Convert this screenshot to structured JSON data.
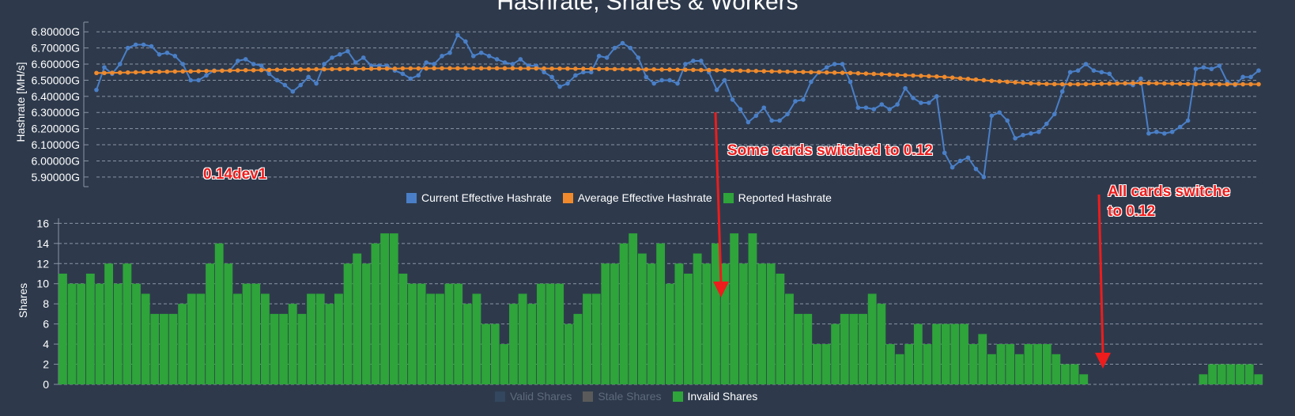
{
  "title": "Hashrate, Shares & Workers",
  "colors": {
    "background": "#2e3a4c",
    "current": "#4a7fc7",
    "average": "#f08a2c",
    "reported": "#2ea43a",
    "bars": "#2ea43a",
    "valid": "#33475e",
    "stale": "#5a5a5a",
    "grid": "#8a94a4",
    "annotation": "#ee1c1c"
  },
  "annotations": {
    "a1": "0.14dev1",
    "a2": "Some cards switched to 0.12",
    "a3_line1": "All cards switche",
    "a3_line2": "to 0.12"
  },
  "chart_data": [
    {
      "type": "line",
      "ylabel": "Hashrate [MH/s]",
      "ylim": [
        5.86,
        6.86
      ],
      "yticks": [
        "5.90000G",
        "6.00000G",
        "6.10000G",
        "6.20000G",
        "6.30000G",
        "6.40000G",
        "6.50000G",
        "6.60000G",
        "6.70000G",
        "6.80000G"
      ],
      "grid": true,
      "legend_position": "bottom",
      "legend": [
        "Current Effective Hashrate",
        "Average Effective Hashrate",
        "Reported Hashrate"
      ],
      "series": [
        {
          "name": "Current Effective Hashrate",
          "values": [
            6.44,
            6.58,
            6.54,
            6.6,
            6.7,
            6.72,
            6.72,
            6.71,
            6.66,
            6.67,
            6.65,
            6.6,
            6.5,
            6.5,
            6.53,
            6.56,
            6.56,
            6.56,
            6.62,
            6.63,
            6.6,
            6.59,
            6.54,
            6.5,
            6.47,
            6.43,
            6.47,
            6.52,
            6.48,
            6.6,
            6.64,
            6.66,
            6.68,
            6.61,
            6.64,
            6.59,
            6.59,
            6.59,
            6.56,
            6.54,
            6.51,
            6.53,
            6.61,
            6.6,
            6.65,
            6.67,
            6.78,
            6.74,
            6.65,
            6.67,
            6.65,
            6.63,
            6.61,
            6.6,
            6.63,
            6.59,
            6.59,
            6.55,
            6.52,
            6.46,
            6.48,
            6.53,
            6.55,
            6.55,
            6.65,
            6.64,
            6.7,
            6.73,
            6.7,
            6.64,
            6.52,
            6.48,
            6.5,
            6.5,
            6.48,
            6.6,
            6.62,
            6.62,
            6.55,
            6.44,
            6.5,
            6.38,
            6.32,
            6.24,
            6.28,
            6.33,
            6.25,
            6.25,
            6.29,
            6.37,
            6.38,
            6.49,
            6.55,
            6.58,
            6.6,
            6.6,
            6.49,
            6.33,
            6.33,
            6.32,
            6.35,
            6.32,
            6.35,
            6.45,
            6.39,
            6.36,
            6.36,
            6.4,
            6.05,
            5.96,
            6.0,
            6.02,
            5.95,
            5.9,
            6.28,
            6.3,
            6.25,
            6.14,
            6.16,
            6.17,
            6.18,
            6.23,
            6.29,
            6.43,
            6.55,
            6.56,
            6.6,
            6.56,
            6.55,
            6.54,
            6.48,
            6.48,
            6.47,
            6.51,
            6.17,
            6.18,
            6.17,
            6.18,
            6.21,
            6.25,
            6.57,
            6.58,
            6.57,
            6.59,
            6.49,
            6.47,
            6.52,
            6.52,
            6.56
          ]
        },
        {
          "name": "Average Effective Hashrate",
          "values": [
            6.545,
            6.545,
            6.546,
            6.547,
            6.548,
            6.549,
            6.55,
            6.551,
            6.552,
            6.553,
            6.554,
            6.555,
            6.555,
            6.556,
            6.557,
            6.558,
            6.559,
            6.56,
            6.561,
            6.562,
            6.562,
            6.563,
            6.564,
            6.565,
            6.565,
            6.566,
            6.567,
            6.567,
            6.568,
            6.568,
            6.569,
            6.569,
            6.57,
            6.57,
            6.571,
            6.571,
            6.572,
            6.572,
            6.572,
            6.573,
            6.573,
            6.573,
            6.573,
            6.574,
            6.574,
            6.574,
            6.574,
            6.574,
            6.574,
            6.574,
            6.574,
            6.574,
            6.574,
            6.574,
            6.573,
            6.573,
            6.573,
            6.573,
            6.572,
            6.572,
            6.572,
            6.571,
            6.571,
            6.571,
            6.57,
            6.57,
            6.569,
            6.569,
            6.568,
            6.568,
            6.567,
            6.567,
            6.566,
            6.566,
            6.565,
            6.565,
            6.564,
            6.563,
            6.563,
            6.562,
            6.561,
            6.56,
            6.559,
            6.558,
            6.557,
            6.556,
            6.555,
            6.554,
            6.553,
            6.552,
            6.551,
            6.55,
            6.549,
            6.548,
            6.547,
            6.546,
            6.545,
            6.543,
            6.541,
            6.539,
            6.537,
            6.535,
            6.533,
            6.531,
            6.529,
            6.527,
            6.525,
            6.523,
            6.52,
            6.516,
            6.512,
            6.508,
            6.504,
            6.5,
            6.496,
            6.493,
            6.49,
            6.487,
            6.484,
            6.481,
            6.479,
            6.477,
            6.476,
            6.475,
            6.475,
            6.475,
            6.476,
            6.477,
            6.478,
            6.479,
            6.48,
            6.481,
            6.482,
            6.482,
            6.482,
            6.481,
            6.48,
            6.479,
            6.478,
            6.477,
            6.476,
            6.476,
            6.475,
            6.475,
            6.475,
            6.475,
            6.475,
            6.475,
            6.475
          ]
        }
      ]
    },
    {
      "type": "bar",
      "ylabel": "Shares",
      "ylim": [
        0,
        16.5
      ],
      "yticks": [
        "0",
        "2",
        "4",
        "6",
        "8",
        "10",
        "12",
        "14",
        "16"
      ],
      "grid": true,
      "legend_position": "bottom",
      "legend": [
        "Valid Shares",
        "Stale Shares",
        "Invalid Shares"
      ],
      "series": [
        {
          "name": "Invalid Shares",
          "values": [
            11,
            10,
            10,
            11,
            10,
            12,
            10,
            12,
            10,
            9,
            7,
            7,
            7,
            8,
            9,
            9,
            12,
            14,
            12,
            9,
            10,
            10,
            9,
            7,
            7,
            8,
            7,
            9,
            9,
            8,
            9,
            12,
            13,
            12,
            14,
            15,
            15,
            11,
            10,
            10,
            9,
            9,
            10,
            10,
            8,
            9,
            6,
            6,
            4,
            8,
            9,
            8,
            10,
            10,
            10,
            6,
            7,
            9,
            9,
            12,
            12,
            14,
            15,
            13,
            12,
            14,
            10,
            12,
            11,
            13,
            12,
            14,
            12,
            15,
            12,
            15,
            12,
            12,
            11,
            9,
            7,
            7,
            4,
            4,
            6,
            7,
            7,
            7,
            9,
            8,
            4,
            3,
            4,
            6,
            4,
            6,
            6,
            6,
            6,
            4,
            5,
            3,
            4,
            4,
            3,
            4,
            4,
            4,
            3,
            2,
            2,
            1,
            0,
            0,
            0,
            0,
            0,
            0,
            0,
            0,
            0,
            0,
            0,
            0,
            1,
            2,
            2,
            2,
            2,
            2,
            1
          ]
        }
      ]
    }
  ]
}
